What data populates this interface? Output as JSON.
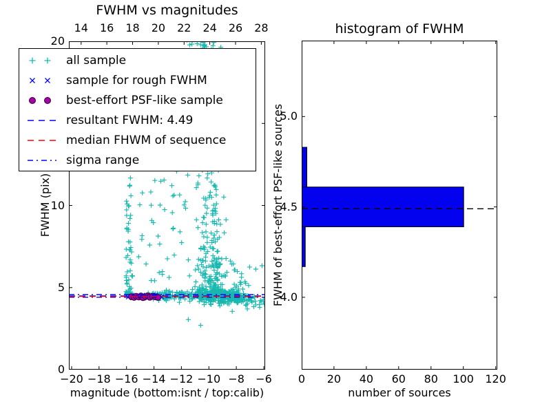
{
  "figure": {
    "background": "#ffffff"
  },
  "colors": {
    "all_sample": "#16b8ae",
    "rough_sample": "#0000ff",
    "psf_fill": "#a800a8",
    "psf_edge": "#300030",
    "resultant_line": "#0000ff",
    "median_line": "#ff0000",
    "sigma_line": "#0000ff",
    "hist_bar": "#0202ee",
    "hist_median_line": "#000000",
    "axis": "#000000"
  },
  "legend": {
    "position": "upper left",
    "items": [
      {
        "label": "all sample",
        "marker": "plus",
        "color": "#16b8ae"
      },
      {
        "label": "sample for rough FWHM",
        "marker": "x",
        "color": "#0000ff"
      },
      {
        "label": "best-effort PSF-like sample",
        "marker": "circle",
        "color": "#a800a8"
      },
      {
        "label": "resultant FWHM: 4.49",
        "marker": "dashed-line",
        "color": "#0000ff"
      },
      {
        "label": "median FHWM of sequence",
        "marker": "dashed-line",
        "color": "#ff0000"
      },
      {
        "label": "sigma range",
        "marker": "dashdot-line",
        "color": "#0000ff"
      }
    ]
  },
  "chart_data": [
    {
      "type": "scatter",
      "title": "FWHM vs magnitudes",
      "xlabel": "magnitude (bottom:isnt / top:calib)",
      "ylabel": "FWHM (pix)",
      "xlim": [
        -20.2,
        -5.9
      ],
      "xticks": [
        -20,
        -18,
        -16,
        -14,
        -12,
        -10,
        -8,
        -6
      ],
      "top_xlim": [
        13.05,
        28.3
      ],
      "top_xticks": [
        14,
        16,
        18,
        20,
        22,
        24,
        26,
        28
      ],
      "ylim": [
        0,
        20
      ],
      "yticks": [
        0,
        5,
        10,
        15,
        20
      ],
      "grid": false,
      "lines": [
        {
          "name": "resultant FWHM",
          "y": 4.49,
          "color": "#0000ff",
          "dash": "dashed"
        },
        {
          "name": "median FHWM of sequence",
          "y": 4.46,
          "color": "#ff0000",
          "dash": "dashed"
        },
        {
          "name": "sigma range",
          "y": [
            4.41,
            4.57
          ],
          "color": "#0000ff",
          "dash": "dashdot"
        }
      ],
      "series": [
        {
          "name": "all sample",
          "marker": "plus",
          "color": "#16b8ae",
          "clusters": [
            {
              "n": 58,
              "seed": 101,
              "mag": [
                -16.05,
                -15.55
              ],
              "fwhm": [
                4.55,
                11.8
              ],
              "bias": 2.2
            },
            {
              "n": 42,
              "seed": 102,
              "mag": [
                -15.3,
                -11.4
              ],
              "fwhm": [
                5.2,
                12.2
              ],
              "bias": 1.2
            },
            {
              "n": 230,
              "seed": 103,
              "magG": [
                -9.9,
                0.5,
                -11.3,
                -8.75
              ],
              "fwhm": [
                4.6,
                20.1
              ],
              "bias": 2.0
            },
            {
              "n": 85,
              "seed": 104,
              "magG": [
                -9.5,
                0.8,
                -11.8,
                -7.6
              ],
              "fwhm": [
                4.55,
                6.8
              ],
              "bias": 1.6
            },
            {
              "n": 26,
              "seed": 105,
              "mag": [
                -11.7,
                -9.4
              ],
              "fwhm": [
                19.35,
                20.45
              ],
              "bias": 0.8
            },
            {
              "n": 110,
              "seed": 106,
              "mag": [
                -14.6,
                -10.4
              ],
              "fwhmG": [
                4.5,
                0.13
              ]
            },
            {
              "n": 290,
              "seed": 107,
              "magG": [
                -8.75,
                1.15,
                -10.7,
                -5.95
              ],
              "fwhmG": [
                4.45,
                0.2
              ],
              "slope": true
            },
            {
              "n": 13,
              "seed": 108,
              "mag": [
                -8.3,
                -6.0
              ],
              "fwhm": [
                4.85,
                6.5
              ],
              "bias": 1.4
            }
          ],
          "outliers": [
            [
              -11.5,
              3.05
            ],
            [
              -10.6,
              2.7
            ],
            [
              -12.15,
              4.1
            ],
            [
              -13.1,
              4.2
            ],
            [
              -8.3,
              3.55
            ],
            [
              -7.2,
              3.7
            ],
            [
              -6.3,
              3.8
            ]
          ]
        },
        {
          "name": "sample for rough FWHM",
          "marker": "x",
          "color": "#0000ff",
          "clusters": [
            {
              "n": 16,
              "seed": 109,
              "mag": [
                -16.0,
                -13.25
              ],
              "fwhmG": [
                4.47,
                0.07
              ]
            }
          ],
          "outliers": []
        },
        {
          "name": "best-effort PSF-like sample",
          "marker": "circle",
          "fill": "#a800a8",
          "edge": "#300030",
          "points": [
            [
              -15.65,
              4.44
            ],
            [
              -15.45,
              4.4
            ],
            [
              -15.3,
              4.47
            ],
            [
              -15.1,
              4.42
            ],
            [
              -14.95,
              4.49
            ],
            [
              -14.8,
              4.38
            ],
            [
              -14.6,
              4.45
            ],
            [
              -14.45,
              4.5
            ],
            [
              -14.3,
              4.41
            ],
            [
              -14.1,
              4.46
            ],
            [
              -13.9,
              4.43
            ],
            [
              -13.7,
              4.4
            ]
          ]
        }
      ]
    },
    {
      "type": "bar",
      "orientation": "horizontal",
      "title": "histogram of FWHM",
      "xlabel": "number of sources",
      "ylabel": "FWHM of best-effort PSF-like sources",
      "xlim": [
        0,
        121
      ],
      "xticks": [
        0,
        20,
        40,
        60,
        80,
        100,
        120
      ],
      "ylim": [
        3.6,
        5.42
      ],
      "yticks": [
        4.0,
        4.5,
        5.0
      ],
      "grid": false,
      "bar_color": "#0202ee",
      "bins": [
        {
          "from": 4.17,
          "to": 4.39,
          "count": 2
        },
        {
          "from": 4.39,
          "to": 4.61,
          "count": 100
        },
        {
          "from": 4.61,
          "to": 4.83,
          "count": 3
        }
      ],
      "dashed_line_y": 4.49
    }
  ]
}
